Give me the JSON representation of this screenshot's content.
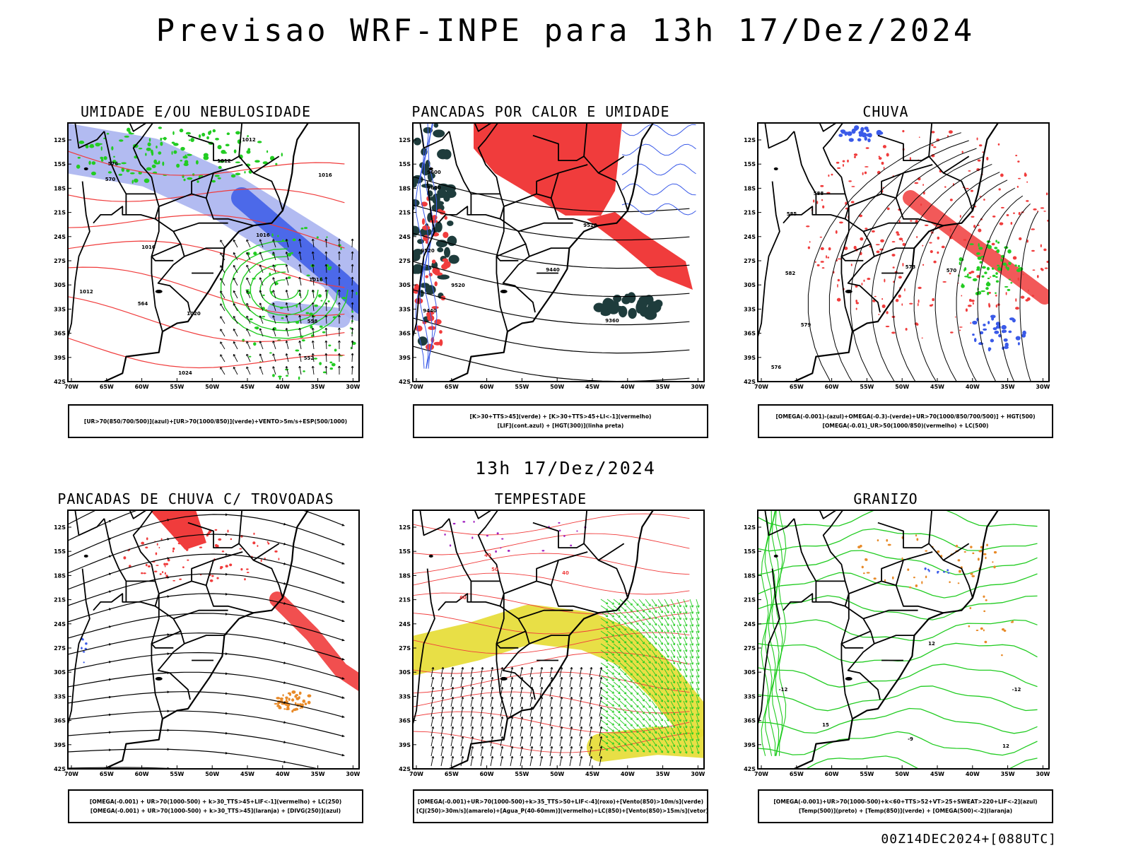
{
  "title": "Previsao WRF-INPE  para 13h 17/Dez/2024",
  "mid_title": "13h 17/Dez/2024",
  "footer": "00Z14DEC2024+[088UTC]",
  "lat_labels": [
    "12S",
    "15S",
    "18S",
    "21S",
    "24S",
    "27S",
    "30S",
    "33S",
    "36S",
    "39S",
    "42S"
  ],
  "lon_labels": [
    "70W",
    "65W",
    "60W",
    "55W",
    "50W",
    "45W",
    "40W",
    "35W",
    "30W"
  ],
  "panels": [
    {
      "title": "UMIDADE E/OU NEBULOSIDADE",
      "legend": [
        "[UR>70(850/700/500)](azul)+[UR>70(1000/850)](verde)+VENTO>5m/s+ESP(500/1000)"
      ],
      "labels": [
        "1012",
        "1012",
        "1016",
        "1016",
        "1016",
        "1020",
        "1024",
        "1012",
        "1016",
        "576",
        "570",
        "564",
        "558",
        "552"
      ]
    },
    {
      "title": "PANCADAS POR CALOR E UMIDADE",
      "legend": [
        "[K>30+TTS>45](verde) + [K>30+TTS>45+LI<-1](vermelho)",
        "[LIF](cont.azul) + [HGT(300)](linha preta)"
      ],
      "labels": [
        "9600",
        "9600",
        "9520",
        "9520",
        "9440",
        "9440",
        "9360",
        "9520"
      ]
    },
    {
      "title": "CHUVA",
      "legend": [
        "[OMEGA(-0.001)-(azul)+OMEGA(-0.3)-(verde)+UR>70(1000/850/700/500)] + HGT(500)",
        "[OMEGA(-0.01)_UR>50(1000/850)(vermelho) + LC(500)"
      ],
      "labels": [
        "588",
        "585",
        "582",
        "579",
        "576",
        "573",
        "570"
      ]
    },
    {
      "title": "PANCADAS DE CHUVA C/ TROVOADAS",
      "legend": [
        "[OMEGA(-0.001) + UR>70(1000-500) + k>30_TTS>45+LIF<-1](vermelho) + LC(250)",
        "[OMEGA(-0.001) + UR>70(1000-500) + k>30_TTS>45](laranja) + [DIVG(250)](azul)"
      ],
      "labels": []
    },
    {
      "title": "TEMPESTADE",
      "legend": [
        "[OMEGA(-0.001)+UR>70(1000-500)+k>35_TTS>50+LIF<-4](roxo)+[Vento(850)>10m/s](verde)",
        "[CJ(250)>30m/s](amarelo)+[Agua_P(40-60mm)](vermelho)+LC(850)+[Vento(850)>15m/s](vetor)"
      ],
      "labels": [
        "40",
        "50",
        "60",
        "40"
      ]
    },
    {
      "title": "GRANIZO",
      "legend": [
        "[OMEGA(-0.001)+UR>70(1000-500)+k<60+TTS>52+VT>25+SWEAT>220+LIF<-2](azul)",
        "[Temp(500)](preto) + [Temp(850)](verde) + [OMEGA(500)<-2](laranja)"
      ],
      "labels": [
        "-12",
        "-12",
        "12",
        "15",
        "-9",
        "12"
      ]
    }
  ],
  "colors": {
    "red": "#f03c3c",
    "green": "#22cc22",
    "blue": "#3a5ae8",
    "lightblue": "#aab4f0",
    "yellow": "#e6dc32",
    "darkteal": "#1e3c3c",
    "orange": "#e88a28",
    "purple": "#a020c0"
  }
}
